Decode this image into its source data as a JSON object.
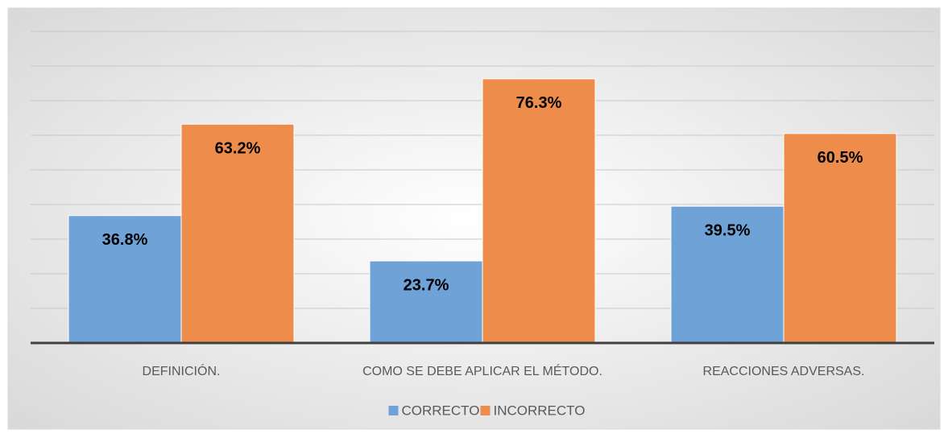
{
  "chart_data": {
    "type": "bar",
    "categories": [
      "DEFINICIÓN.",
      "COMO SE DEBE APLICAR EL MÉTODO.",
      "REACCIONES ADVERSAS."
    ],
    "series": [
      {
        "name": "CORRECTO",
        "color": "#6fa3d8",
        "values": [
          36.8,
          23.7,
          39.5
        ],
        "value_labels": [
          "36.8%",
          "23.7%",
          "39.5%"
        ]
      },
      {
        "name": "INCORRECTO",
        "color": "#ee8c4c",
        "values": [
          63.2,
          76.3,
          60.5
        ],
        "value_labels": [
          "63.2%",
          "76.3%",
          "60.5%"
        ]
      }
    ],
    "ylim": [
      0,
      90
    ],
    "yticks": [
      0,
      10,
      20,
      30,
      40,
      50,
      60,
      70,
      80,
      90
    ],
    "grid": true,
    "legend": "bottom"
  }
}
